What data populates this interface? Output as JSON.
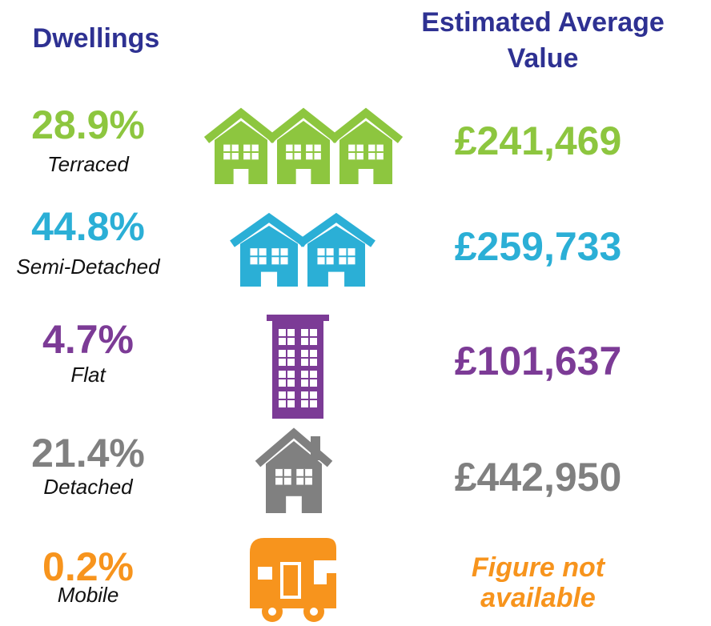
{
  "header": {
    "dwellings": "Dwellings",
    "value_title": [
      "Estimated Average",
      "Value"
    ],
    "color": "#2e3192"
  },
  "rows": [
    {
      "percent": "28.9%",
      "type": "Terraced",
      "value": [
        "£241,469"
      ],
      "value_style": "normal",
      "color": "#8dc63f",
      "icon": "terraced"
    },
    {
      "percent": "44.8%",
      "type": "Semi-Detached",
      "value": [
        "£259,733"
      ],
      "value_style": "normal",
      "color": "#2bafd6",
      "icon": "semi"
    },
    {
      "percent": "4.7%",
      "type": "Flat",
      "value": [
        "£101,637"
      ],
      "value_style": "normal",
      "color": "#7c3b96",
      "icon": "flat"
    },
    {
      "percent": "21.4%",
      "type": "Detached",
      "value": [
        "£442,950"
      ],
      "value_style": "normal",
      "color": "#808080",
      "icon": "detached"
    },
    {
      "percent": "0.2%",
      "type": "Mobile",
      "value": [
        "Figure not",
        "available"
      ],
      "value_style": "italic",
      "color": "#f7941d",
      "icon": "mobile"
    }
  ]
}
